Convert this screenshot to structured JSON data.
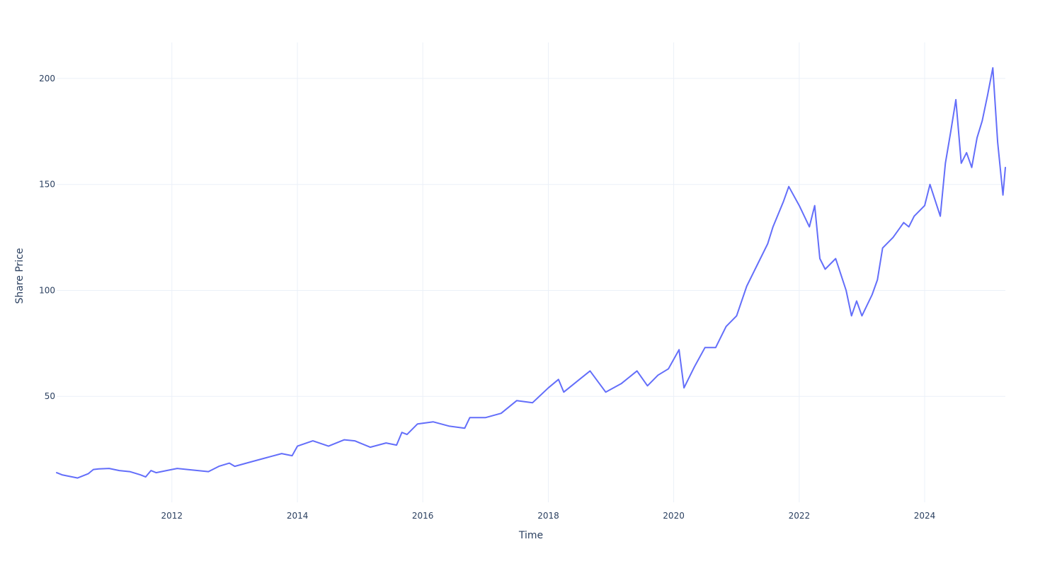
{
  "chart_data": {
    "type": "line",
    "xlabel": "Time",
    "ylabel": "Share Price",
    "xlim": [
      "2010-03-01",
      "2025-04-15"
    ],
    "ylim": [
      0,
      217
    ],
    "x_ticks": [
      "2012",
      "2014",
      "2016",
      "2018",
      "2020",
      "2022",
      "2024"
    ],
    "y_ticks": [
      50,
      100,
      150,
      200
    ],
    "grid": true,
    "legend": "none",
    "series": [
      {
        "color": "#636efa",
        "points": [
          [
            "2010-03-01",
            14.0
          ],
          [
            "2010-04-01",
            13.0
          ],
          [
            "2010-05-01",
            12.5
          ],
          [
            "2010-06-01",
            12.0
          ],
          [
            "2010-07-01",
            11.5
          ],
          [
            "2010-08-01",
            12.5
          ],
          [
            "2010-09-01",
            13.5
          ],
          [
            "2010-10-01",
            15.5
          ],
          [
            "2010-11-01",
            15.8
          ],
          [
            "2011-01-01",
            16.0
          ],
          [
            "2011-03-01",
            15.0
          ],
          [
            "2011-05-01",
            14.5
          ],
          [
            "2011-07-01",
            13.0
          ],
          [
            "2011-08-01",
            12.0
          ],
          [
            "2011-09-01",
            15.0
          ],
          [
            "2011-10-01",
            14.0
          ],
          [
            "2011-12-01",
            15.0
          ],
          [
            "2012-02-01",
            16.0
          ],
          [
            "2012-04-01",
            15.5
          ],
          [
            "2012-06-01",
            15.0
          ],
          [
            "2012-08-01",
            14.5
          ],
          [
            "2012-10-01",
            17.0
          ],
          [
            "2012-12-01",
            18.5
          ],
          [
            "2013-01-01",
            17.0
          ],
          [
            "2013-04-01",
            19.0
          ],
          [
            "2013-07-01",
            21.0
          ],
          [
            "2013-10-01",
            23.0
          ],
          [
            "2013-12-01",
            22.0
          ],
          [
            "2014-01-01",
            26.5
          ],
          [
            "2014-04-01",
            29.0
          ],
          [
            "2014-07-01",
            26.5
          ],
          [
            "2014-10-01",
            29.5
          ],
          [
            "2014-12-01",
            29.0
          ],
          [
            "2015-03-01",
            26.0
          ],
          [
            "2015-06-01",
            28.0
          ],
          [
            "2015-08-01",
            27.0
          ],
          [
            "2015-09-01",
            33.0
          ],
          [
            "2015-10-01",
            32.0
          ],
          [
            "2015-12-01",
            37.0
          ],
          [
            "2016-03-01",
            38.0
          ],
          [
            "2016-06-01",
            36.0
          ],
          [
            "2016-09-01",
            35.0
          ],
          [
            "2016-10-01",
            40.0
          ],
          [
            "2017-01-01",
            40.0
          ],
          [
            "2017-04-01",
            42.0
          ],
          [
            "2017-07-01",
            48.0
          ],
          [
            "2017-10-01",
            47.0
          ],
          [
            "2018-01-01",
            54.0
          ],
          [
            "2018-03-01",
            58.0
          ],
          [
            "2018-04-01",
            52.0
          ],
          [
            "2018-07-01",
            58.0
          ],
          [
            "2018-09-01",
            62.0
          ],
          [
            "2018-12-01",
            52.0
          ],
          [
            "2019-03-01",
            56.0
          ],
          [
            "2019-06-01",
            62.0
          ],
          [
            "2019-08-01",
            55.0
          ],
          [
            "2019-10-01",
            60.0
          ],
          [
            "2019-12-01",
            63.0
          ],
          [
            "2020-02-01",
            72.0
          ],
          [
            "2020-03-01",
            54.0
          ],
          [
            "2020-05-01",
            64.0
          ],
          [
            "2020-07-01",
            73.0
          ],
          [
            "2020-09-01",
            73.0
          ],
          [
            "2020-11-01",
            83.0
          ],
          [
            "2021-01-01",
            88.0
          ],
          [
            "2021-03-01",
            102.0
          ],
          [
            "2021-05-01",
            112.0
          ],
          [
            "2021-07-01",
            122.0
          ],
          [
            "2021-08-01",
            130.0
          ],
          [
            "2021-10-01",
            142.0
          ],
          [
            "2021-11-01",
            149.0
          ],
          [
            "2022-01-01",
            140.0
          ],
          [
            "2022-03-01",
            130.0
          ],
          [
            "2022-04-01",
            140.0
          ],
          [
            "2022-05-01",
            115.0
          ],
          [
            "2022-06-01",
            110.0
          ],
          [
            "2022-08-01",
            115.0
          ],
          [
            "2022-10-01",
            100.0
          ],
          [
            "2022-11-01",
            88.0
          ],
          [
            "2022-12-01",
            95.0
          ],
          [
            "2023-01-01",
            88.0
          ],
          [
            "2023-03-01",
            98.0
          ],
          [
            "2023-04-01",
            105.0
          ],
          [
            "2023-05-01",
            120.0
          ],
          [
            "2023-07-01",
            125.0
          ],
          [
            "2023-09-01",
            132.0
          ],
          [
            "2023-10-01",
            130.0
          ],
          [
            "2023-11-01",
            135.0
          ],
          [
            "2024-01-01",
            140.0
          ],
          [
            "2024-02-01",
            150.0
          ],
          [
            "2024-04-01",
            135.0
          ],
          [
            "2024-05-01",
            160.0
          ],
          [
            "2024-06-01",
            175.0
          ],
          [
            "2024-07-01",
            190.0
          ],
          [
            "2024-08-01",
            160.0
          ],
          [
            "2024-09-01",
            165.0
          ],
          [
            "2024-10-01",
            158.0
          ],
          [
            "2024-11-01",
            172.0
          ],
          [
            "2024-12-01",
            180.0
          ],
          [
            "2025-01-01",
            192.0
          ],
          [
            "2025-02-01",
            205.0
          ],
          [
            "2025-03-01",
            170.0
          ],
          [
            "2025-04-01",
            145.0
          ],
          [
            "2025-04-15",
            158.0
          ]
        ]
      }
    ]
  }
}
